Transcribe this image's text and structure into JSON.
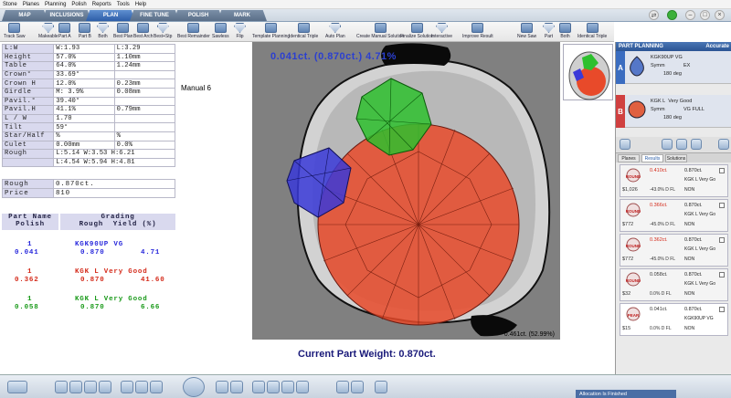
{
  "menu": [
    "Stone",
    "Planes",
    "Planning",
    "Polish",
    "Reports",
    "Tools",
    "Help"
  ],
  "tabs": [
    "MAP",
    "INCLUSIONS",
    "PLAN",
    "FINE TUNE",
    "POLISH",
    "MARK"
  ],
  "active_tab": "PLAN",
  "toolbar": [
    "Track Saw",
    "Makeable",
    "Part A",
    "Part B",
    "Both",
    "Best Plan",
    "Best Arch",
    "Best+Stp",
    "Best Remainder",
    "Sawless",
    "Flip",
    "Template Planning",
    "Identical Triple",
    "Auto Plan",
    "Create Manual Solution",
    "Finalize Solution",
    "Interactive",
    "Improve Result",
    "New Saw",
    "Part",
    "Both",
    "Identical Triple",
    "Best Arch",
    "Best+Stp",
    "Best+Top Blade",
    "Flip",
    "Forcast A"
  ],
  "params": [
    [
      "L:W",
      "W:1.93",
      "L:3.29"
    ],
    [
      "Height",
      "57.0%",
      "1.10mm"
    ],
    [
      "Table",
      "64.0%",
      "1.24mm"
    ],
    [
      "Crown°",
      "33.69°",
      ""
    ],
    [
      "Crown H",
      "12.0%",
      "0.23mm"
    ],
    [
      "Girdle",
      "M: 3.9%",
      "0.08mm"
    ],
    [
      "Pavil.°",
      "39.40°",
      ""
    ],
    [
      "Pavil.H",
      "41.1%",
      "0.79mm"
    ],
    [
      "L / W",
      "1.70",
      ""
    ],
    [
      "Tilt",
      "59°",
      ""
    ],
    [
      "Star/Half",
      "%",
      "%"
    ],
    [
      "Culet",
      "0.00mm",
      "0.0%"
    ],
    [
      "Rough",
      "L:5.14 W:3.53 H:6.21",
      ""
    ],
    [
      "",
      "L:4.54 W:5.94 H:4.81",
      ""
    ]
  ],
  "manual_label": "Manual 6",
  "rough": {
    "label": "Rough",
    "value": "0.870ct."
  },
  "price": {
    "label": "Price",
    "value": "810"
  },
  "grading": {
    "h_partname": "Part Name",
    "h_polish": "Polish",
    "h_grading": "Grading",
    "h_rough": "Rough",
    "h_yield": "Yield (%)",
    "rows": [
      {
        "id": "1",
        "name": "KGK90UP VG",
        "polish": "0.041",
        "rough": "0.870",
        "yield": "4.71",
        "color": "#2a2adc"
      },
      {
        "id": "1",
        "name": "KGK L Very Good",
        "polish": "0.362",
        "rough": "0.870",
        "yield": "41.60",
        "color": "#d42a1a"
      },
      {
        "id": "1",
        "name": "KGK L Very Good",
        "polish": "0.058",
        "rough": "0.870",
        "yield": "6.66",
        "color": "#1a9a1a"
      }
    ]
  },
  "view": {
    "top_weight": "0.041ct. (0.870ct.) 4.71%",
    "bottom_weight": "0.461ct. (52.99%)",
    "current_weight": "Current Part Weight: 0.870ct."
  },
  "right": {
    "title": "PART PLANNING",
    "mode": "Accurate",
    "plans": [
      {
        "badge": "A",
        "shape": "PEAR",
        "name": "KGK90UP VG",
        "symm_label": "Symm",
        "symm": "EX",
        "deg": "180 deg",
        "badge_color": "#3a6cc0"
      },
      {
        "badge": "B",
        "shape": "ROUND",
        "name": "KGK L",
        "grade": "Very Good",
        "symm_label": "Symm",
        "symm": "VG FULL",
        "deg": "180 deg",
        "badge_color": "#d04040"
      }
    ],
    "subtabs": [
      "Planes",
      "Results",
      "Solutions"
    ],
    "results": [
      {
        "shape": "ROUND",
        "weight": "0.410ct.",
        "rough": "0.870ct.",
        "price": "$1,026",
        "info": "-43.0%  D  FL",
        "grade": "KGK L Very Go",
        "non": "NON"
      },
      {
        "shape": "ROUND",
        "weight": "0.366ct.",
        "rough": "0.870ct.",
        "price": "$772",
        "info": "-45.0%  D  FL",
        "grade": "KGK L Very Go",
        "non": "NON"
      },
      {
        "shape": "ROUND",
        "weight": "0.362ct.",
        "rough": "0.870ct.",
        "price": "$772",
        "info": "-45.0%  D  FL",
        "grade": "KGK L Very Go",
        "non": "NON"
      },
      {
        "shape": "ROUND",
        "weight": "0.058ct.",
        "rough": "0.870ct.",
        "price": "$32",
        "info": "0.0%  D  FL",
        "grade": "KGK L Very Go",
        "non": "NON"
      },
      {
        "shape": "PEAR",
        "weight": "0.041ct.",
        "rough": "0.870ct.",
        "price": "$15",
        "info": "0.0%  D  FL",
        "grade": "KGK90UP VG",
        "non": "NON"
      }
    ]
  },
  "status": "Allocation Is Finished"
}
